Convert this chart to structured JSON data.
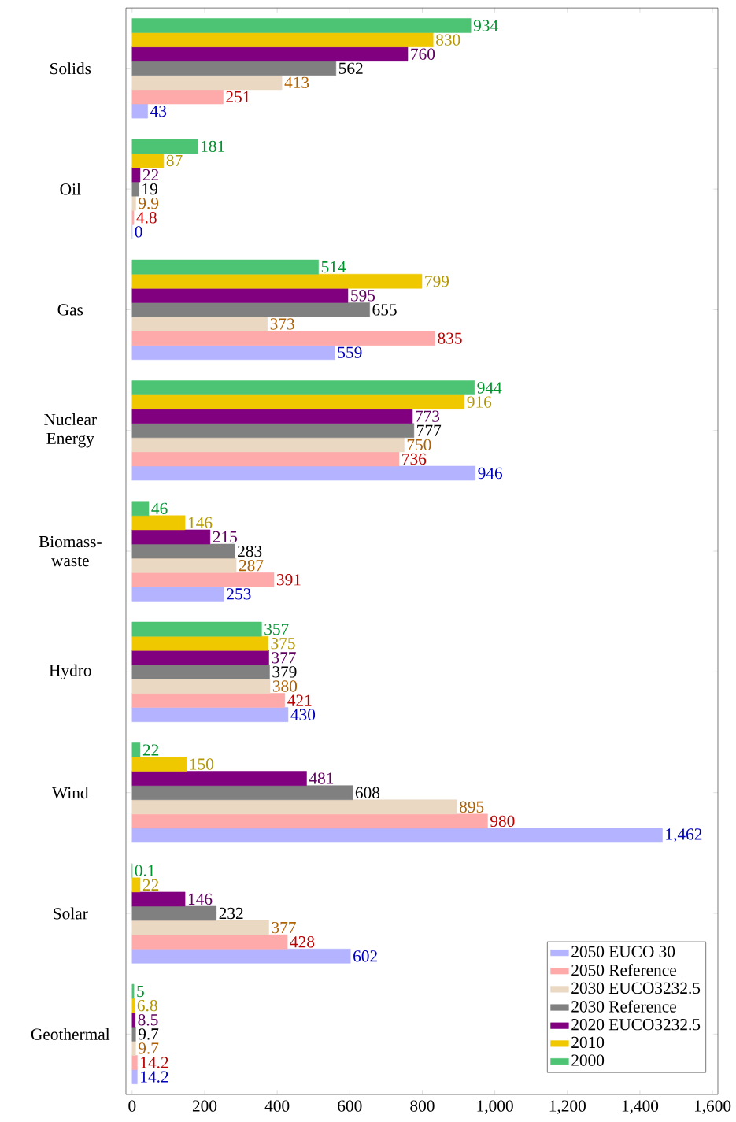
{
  "chart_data": {
    "type": "bar",
    "orientation": "horizontal",
    "categories": [
      "Solids",
      "Oil",
      "Gas",
      "Nuclear Energy",
      "Biomass-waste",
      "Hydro",
      "Wind",
      "Solar",
      "Geothermal"
    ],
    "series": [
      {
        "name": "2050 EUCO 30",
        "color": "#b3b3ff",
        "values": [
          43,
          0,
          559,
          946,
          253,
          430,
          1462,
          602,
          14.2
        ],
        "value_labels": [
          "43",
          "0",
          "559",
          "946",
          "253",
          "430",
          "1,462",
          "602",
          "14.2"
        ]
      },
      {
        "name": "2050 Reference",
        "color": "#ffaaaa",
        "values": [
          251,
          4.8,
          835,
          736,
          391,
          421,
          980,
          428,
          14.2
        ],
        "value_labels": [
          "251",
          "4.8",
          "835",
          "736",
          "391",
          "421",
          "980",
          "428",
          "14.2"
        ]
      },
      {
        "name": "2030 EUCO3232.5",
        "color": "#ead8c2",
        "values": [
          413,
          9.9,
          373,
          750,
          287,
          380,
          895,
          377,
          9.7
        ],
        "value_labels": [
          "413",
          "9.9",
          "373",
          "750",
          "287",
          "380",
          "895",
          "377",
          "9.7"
        ]
      },
      {
        "name": "2030 Reference",
        "color": "#808080",
        "values": [
          562,
          19,
          655,
          777,
          283,
          379,
          608,
          232,
          9.7
        ],
        "value_labels": [
          "562",
          "19",
          "655",
          "777",
          "283",
          "379",
          "608",
          "232",
          "9.7"
        ]
      },
      {
        "name": "2020 EUCO3232.5",
        "color": "#800080",
        "values": [
          760,
          22,
          595,
          773,
          215,
          377,
          481,
          146,
          8.5
        ],
        "value_labels": [
          "760",
          "22",
          "595",
          "773",
          "215",
          "377",
          "481",
          "146",
          "8.5"
        ]
      },
      {
        "name": "2010",
        "color": "#f0c800",
        "values": [
          830,
          87,
          799,
          916,
          146,
          375,
          150,
          22,
          6.8
        ],
        "value_labels": [
          "830",
          "87",
          "799",
          "916",
          "146",
          "375",
          "150",
          "22",
          "6.8"
        ]
      },
      {
        "name": "2000",
        "color": "#4dc473",
        "values": [
          934,
          181,
          514,
          944,
          46,
          357,
          22,
          0.1,
          5
        ],
        "value_labels": [
          "934",
          "181",
          "514",
          "944",
          "46",
          "357",
          "22",
          "0.1",
          "5"
        ]
      }
    ],
    "xlim": [
      -17,
      1615
    ],
    "xticks": [
      0,
      200,
      400,
      600,
      800,
      {
        "value": 1000,
        "label": "1,000"
      },
      {
        "value": 1200,
        "label": "1,200"
      },
      {
        "value": 1400,
        "label": "1,400"
      },
      {
        "value": 1600,
        "label": "1,600"
      }
    ],
    "legend": "bottom right",
    "grid": false
  }
}
